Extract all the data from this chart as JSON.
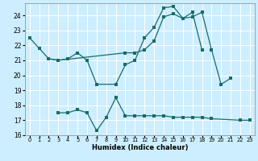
{
  "xlabel": "Humidex (Indice chaleur)",
  "bg_color": "#cceeff",
  "line_color": "#1a6b6b",
  "grid_color": "#ffffff",
  "xlim": [
    -0.5,
    23.5
  ],
  "ylim": [
    16,
    24.8
  ],
  "yticks": [
    16,
    17,
    18,
    19,
    20,
    21,
    22,
    23,
    24
  ],
  "xtick_labels": [
    "0",
    "1",
    "2",
    "3",
    "4",
    "5",
    "6",
    "7",
    "8",
    "9",
    "10",
    "11",
    "12",
    "13",
    "14",
    "15",
    "16",
    "17",
    "18",
    "19",
    "20",
    "21",
    "22",
    "23"
  ],
  "line1_x": [
    0,
    1,
    2,
    3,
    4,
    5,
    6,
    7,
    9,
    10,
    11,
    12,
    13,
    14,
    15,
    16,
    17,
    18,
    19,
    20,
    21
  ],
  "line1_y": [
    22.5,
    21.8,
    21.1,
    21.0,
    21.1,
    21.5,
    21.0,
    19.4,
    19.4,
    20.7,
    21.0,
    22.5,
    23.2,
    24.5,
    24.6,
    23.8,
    23.9,
    24.2,
    21.7,
    19.4,
    19.8
  ],
  "line2_x": [
    2,
    3,
    10,
    11,
    12,
    13,
    14,
    15,
    16,
    17,
    18
  ],
  "line2_y": [
    21.1,
    21.0,
    21.5,
    21.5,
    21.7,
    22.3,
    23.9,
    24.1,
    23.8,
    24.2,
    21.7
  ],
  "line3_x": [
    3,
    4,
    5,
    6,
    7,
    8,
    9,
    10,
    11,
    12,
    13,
    14,
    15,
    16,
    17,
    18,
    19,
    22,
    23
  ],
  "line3_y": [
    17.5,
    17.5,
    17.7,
    17.5,
    16.3,
    17.2,
    18.5,
    17.3,
    17.3,
    17.3,
    17.3,
    17.3,
    17.2,
    17.2,
    17.2,
    17.2,
    17.1,
    17.0,
    17.0
  ]
}
